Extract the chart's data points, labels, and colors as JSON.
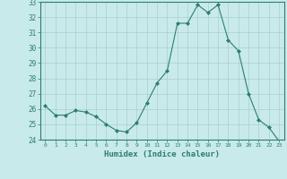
{
  "x": [
    0,
    1,
    2,
    3,
    4,
    5,
    6,
    7,
    8,
    9,
    10,
    11,
    12,
    13,
    14,
    15,
    16,
    17,
    18,
    19,
    20,
    21,
    22,
    23
  ],
  "y": [
    26.2,
    25.6,
    25.6,
    25.9,
    25.8,
    25.5,
    25.0,
    24.6,
    24.5,
    25.1,
    26.4,
    27.7,
    28.5,
    31.6,
    31.6,
    32.8,
    32.3,
    32.8,
    30.5,
    29.8,
    27.0,
    25.3,
    24.8,
    23.9
  ],
  "line_color": "#2e7d6e",
  "marker": "D",
  "marker_size": 2,
  "bg_color": "#c8eaea",
  "grid_color": "#aacece",
  "tick_color": "#2e7d6e",
  "label_color": "#2e7d6e",
  "xlabel": "Humidex (Indice chaleur)",
  "ylim": [
    24,
    33
  ],
  "yticks": [
    24,
    25,
    26,
    27,
    28,
    29,
    30,
    31,
    32,
    33
  ],
  "xticks": [
    0,
    1,
    2,
    3,
    4,
    5,
    6,
    7,
    8,
    9,
    10,
    11,
    12,
    13,
    14,
    15,
    16,
    17,
    18,
    19,
    20,
    21,
    22,
    23
  ]
}
